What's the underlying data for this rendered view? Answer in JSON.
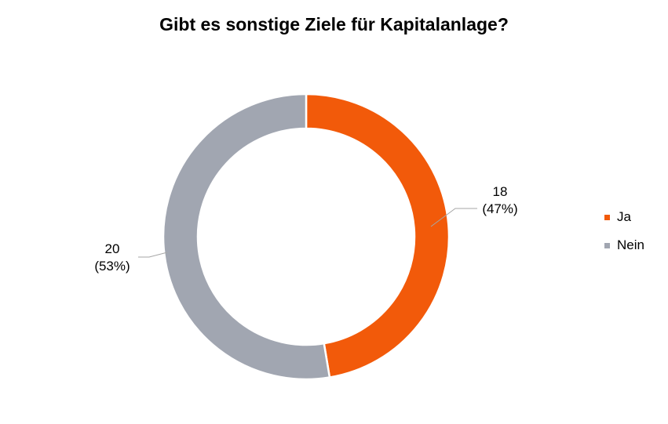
{
  "chart_data": {
    "type": "pie",
    "variant": "donut",
    "title": "Gibt es sonstige Ziele für Kapitalanlage?",
    "categories": [
      "Ja",
      "Nein"
    ],
    "values": [
      18,
      20
    ],
    "labels": [
      {
        "count": "18",
        "percent": "(47%)"
      },
      {
        "count": "20",
        "percent": "(53%)"
      }
    ],
    "colors": [
      "#f25a0a",
      "#a1a6b1"
    ],
    "legend_position": "right"
  }
}
